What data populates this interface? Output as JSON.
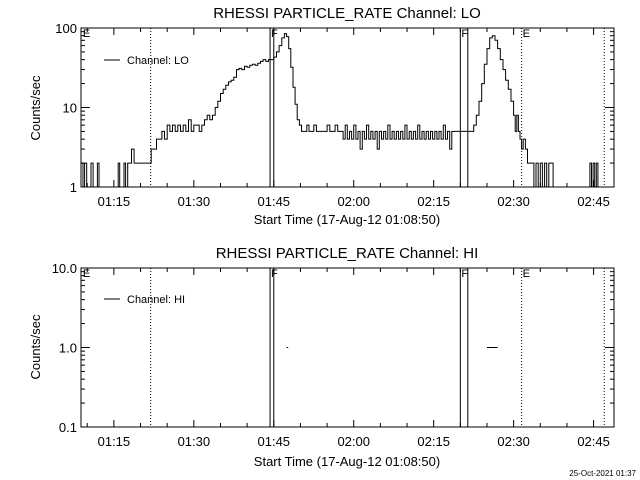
{
  "footer": {
    "timestamp": "25-Oct-2021 01:37"
  },
  "chart_data": [
    {
      "type": "line",
      "title": "RHESSI PARTICLE_RATE Channel: LO",
      "xlabel": "Start Time (17-Aug-12 01:08:50)",
      "ylabel": "Counts/sec",
      "yscale": "log",
      "xlim_minutes": [
        68.83,
        168.83
      ],
      "ylim": [
        1,
        100
      ],
      "xticks": [
        {
          "value": 75,
          "label": "01:15"
        },
        {
          "value": 90,
          "label": "01:30"
        },
        {
          "value": 105,
          "label": "01:45"
        },
        {
          "value": 120,
          "label": "02:00"
        },
        {
          "value": 135,
          "label": "02:15"
        },
        {
          "value": 150,
          "label": "02:30"
        },
        {
          "value": 165,
          "label": "02:45"
        }
      ],
      "yticks": [
        {
          "value": 1,
          "label": "1"
        },
        {
          "value": 10,
          "label": "10"
        },
        {
          "value": 100,
          "label": "100"
        }
      ],
      "legend": {
        "entry": "Channel: LO",
        "position": "top-left"
      },
      "flags": [
        {
          "label": "E",
          "x": 69.0,
          "style": "none"
        },
        {
          "label": "",
          "x": 81.9,
          "style": "dotted"
        },
        {
          "label": "F",
          "x": 104.3,
          "style": "solid"
        },
        {
          "label": "",
          "x": 105.0,
          "style": "solid"
        },
        {
          "label": "F",
          "x": 140.0,
          "style": "solid"
        },
        {
          "label": "",
          "x": 141.4,
          "style": "solid"
        },
        {
          "label": "E",
          "x": 151.5,
          "style": "dotted"
        },
        {
          "label": "",
          "x": 167.0,
          "style": "dotted"
        }
      ],
      "series": [
        {
          "name": "Channel: LO",
          "points": [
            [
              68.9,
              2
            ],
            [
              69.2,
              1
            ],
            [
              69.5,
              2
            ],
            [
              69.9,
              1
            ],
            [
              70.3,
              1
            ],
            [
              70.7,
              2
            ],
            [
              71.1,
              1
            ],
            [
              71.6,
              1
            ],
            [
              71.9,
              2
            ],
            [
              72.2,
              1
            ],
            [
              75.5,
              1
            ],
            [
              75.8,
              2
            ],
            [
              76.1,
              1
            ],
            [
              76.5,
              1
            ],
            [
              76.9,
              2
            ],
            [
              77.2,
              1
            ],
            [
              77.6,
              2
            ],
            [
              78.0,
              2
            ],
            [
              78.3,
              3
            ],
            [
              78.8,
              2
            ],
            [
              81.8,
              2
            ],
            [
              82.0,
              3
            ],
            [
              82.6,
              3
            ],
            [
              83.0,
              4
            ],
            [
              83.6,
              4
            ],
            [
              84.0,
              5
            ],
            [
              84.5,
              4
            ],
            [
              85.0,
              6
            ],
            [
              85.5,
              5
            ],
            [
              86.0,
              6
            ],
            [
              86.5,
              5
            ],
            [
              87.0,
              6
            ],
            [
              87.5,
              5
            ],
            [
              88.0,
              6
            ],
            [
              88.5,
              5
            ],
            [
              89.0,
              7
            ],
            [
              89.5,
              5
            ],
            [
              90.0,
              6
            ],
            [
              90.5,
              6
            ],
            [
              91.0,
              5
            ],
            [
              91.5,
              6
            ],
            [
              92.0,
              7
            ],
            [
              92.5,
              8
            ],
            [
              93.0,
              7
            ],
            [
              93.5,
              8
            ],
            [
              94.0,
              10
            ],
            [
              94.5,
              12
            ],
            [
              95.0,
              15
            ],
            [
              95.5,
              17
            ],
            [
              96.0,
              19
            ],
            [
              96.5,
              21
            ],
            [
              97.0,
              22
            ],
            [
              97.5,
              24
            ],
            [
              98.0,
              30
            ],
            [
              98.5,
              31
            ],
            [
              99.0,
              30
            ],
            [
              99.5,
              33
            ],
            [
              100.0,
              32
            ],
            [
              100.5,
              34
            ],
            [
              101.0,
              35
            ],
            [
              101.5,
              34
            ],
            [
              102.0,
              36
            ],
            [
              102.5,
              38
            ],
            [
              103.0,
              40
            ],
            [
              103.5,
              38
            ],
            [
              104.0,
              40
            ],
            [
              104.3,
              40
            ],
            [
              105.0,
              43
            ],
            [
              105.5,
              50
            ],
            [
              106.0,
              60
            ],
            [
              106.5,
              75
            ],
            [
              107.0,
              85
            ],
            [
              107.4,
              78
            ],
            [
              107.8,
              55
            ],
            [
              108.2,
              32
            ],
            [
              108.6,
              18
            ],
            [
              109.0,
              11
            ],
            [
              109.4,
              7
            ],
            [
              109.8,
              6
            ],
            [
              110.2,
              5
            ],
            [
              110.7,
              5
            ],
            [
              111.2,
              6
            ],
            [
              111.6,
              5
            ],
            [
              112.0,
              5
            ],
            [
              112.5,
              6
            ],
            [
              113.0,
              5
            ],
            [
              113.5,
              5
            ],
            [
              114.0,
              5
            ],
            [
              114.5,
              5
            ],
            [
              115.0,
              6
            ],
            [
              115.5,
              5
            ],
            [
              116.0,
              5
            ],
            [
              116.5,
              6
            ],
            [
              117.0,
              5
            ],
            [
              117.5,
              5
            ],
            [
              118.0,
              4
            ],
            [
              118.4,
              6
            ],
            [
              118.8,
              4
            ],
            [
              119.2,
              5
            ],
            [
              119.6,
              4
            ],
            [
              120.0,
              6
            ],
            [
              120.4,
              4
            ],
            [
              120.8,
              5
            ],
            [
              121.2,
              3
            ],
            [
              121.6,
              5
            ],
            [
              122.0,
              4
            ],
            [
              122.4,
              6
            ],
            [
              122.8,
              4
            ],
            [
              123.2,
              5
            ],
            [
              123.6,
              4
            ],
            [
              124.0,
              5
            ],
            [
              124.4,
              3
            ],
            [
              124.8,
              5
            ],
            [
              125.2,
              4
            ],
            [
              125.6,
              5
            ],
            [
              126.0,
              4
            ],
            [
              126.4,
              6
            ],
            [
              126.8,
              4
            ],
            [
              127.2,
              5
            ],
            [
              127.6,
              4
            ],
            [
              128.0,
              5
            ],
            [
              128.4,
              4
            ],
            [
              128.8,
              5
            ],
            [
              129.2,
              4
            ],
            [
              129.6,
              6
            ],
            [
              130.0,
              4
            ],
            [
              130.4,
              5
            ],
            [
              130.8,
              4
            ],
            [
              131.2,
              5
            ],
            [
              131.6,
              4
            ],
            [
              132.0,
              6
            ],
            [
              132.4,
              4
            ],
            [
              132.8,
              5
            ],
            [
              133.2,
              4
            ],
            [
              133.6,
              5
            ],
            [
              134.0,
              4
            ],
            [
              134.4,
              5
            ],
            [
              134.8,
              4
            ],
            [
              135.2,
              5
            ],
            [
              135.6,
              4
            ],
            [
              136.0,
              5
            ],
            [
              136.4,
              4
            ],
            [
              136.8,
              6
            ],
            [
              137.2,
              4
            ],
            [
              137.6,
              5
            ],
            [
              138.0,
              3
            ],
            [
              138.4,
              5
            ],
            [
              138.8,
              5
            ],
            [
              139.2,
              5
            ],
            [
              140.0,
              5
            ],
            [
              141.4,
              5
            ],
            [
              142.0,
              5
            ],
            [
              142.5,
              6
            ],
            [
              143.0,
              8
            ],
            [
              143.5,
              12
            ],
            [
              144.0,
              20
            ],
            [
              144.5,
              35
            ],
            [
              145.0,
              55
            ],
            [
              145.5,
              75
            ],
            [
              146.0,
              80
            ],
            [
              146.5,
              70
            ],
            [
              147.0,
              55
            ],
            [
              147.5,
              40
            ],
            [
              148.0,
              30
            ],
            [
              148.5,
              22
            ],
            [
              149.0,
              17
            ],
            [
              149.5,
              12
            ],
            [
              150.0,
              8
            ],
            [
              150.3,
              5
            ],
            [
              150.6,
              8
            ],
            [
              150.9,
              5
            ],
            [
              151.2,
              4
            ],
            [
              151.5,
              3
            ],
            [
              151.8,
              4
            ],
            [
              152.2,
              3
            ],
            [
              152.6,
              2
            ],
            [
              153.0,
              2
            ],
            [
              153.4,
              2
            ],
            [
              153.8,
              1
            ],
            [
              154.2,
              2
            ],
            [
              154.6,
              1
            ],
            [
              155.0,
              2
            ],
            [
              155.4,
              1
            ],
            [
              155.8,
              2
            ],
            [
              156.2,
              1
            ],
            [
              156.6,
              2
            ],
            [
              157.0,
              2
            ],
            [
              157.4,
              1
            ],
            [
              164.0,
              1
            ],
            [
              164.3,
              2
            ],
            [
              164.6,
              1
            ],
            [
              164.9,
              2
            ],
            [
              165.2,
              1
            ],
            [
              165.5,
              2
            ],
            [
              165.8,
              1
            ]
          ]
        }
      ]
    },
    {
      "type": "line",
      "title": "RHESSI PARTICLE_RATE Channel: HI",
      "xlabel": "Start Time (17-Aug-12 01:08:50)",
      "ylabel": "Counts/sec",
      "yscale": "log",
      "xlim_minutes": [
        68.83,
        168.83
      ],
      "ylim": [
        0.1,
        10
      ],
      "xticks": [
        {
          "value": 75,
          "label": "01:15"
        },
        {
          "value": 90,
          "label": "01:30"
        },
        {
          "value": 105,
          "label": "01:45"
        },
        {
          "value": 120,
          "label": "02:00"
        },
        {
          "value": 135,
          "label": "02:15"
        },
        {
          "value": 150,
          "label": "02:30"
        },
        {
          "value": 165,
          "label": "02:45"
        }
      ],
      "yticks": [
        {
          "value": 0.1,
          "label": "0.1"
        },
        {
          "value": 1,
          "label": "1.0"
        },
        {
          "value": 10,
          "label": "10.0"
        }
      ],
      "legend": {
        "entry": "Channel: HI",
        "position": "top-left"
      },
      "flags": [
        {
          "label": "E",
          "x": 69.0,
          "style": "none"
        },
        {
          "label": "",
          "x": 81.9,
          "style": "dotted"
        },
        {
          "label": "F",
          "x": 104.3,
          "style": "solid"
        },
        {
          "label": "",
          "x": 105.0,
          "style": "solid"
        },
        {
          "label": "F",
          "x": 140.0,
          "style": "solid"
        },
        {
          "label": "",
          "x": 141.4,
          "style": "solid"
        },
        {
          "label": "E",
          "x": 151.5,
          "style": "dotted"
        },
        {
          "label": "",
          "x": 167.0,
          "style": "dotted"
        }
      ],
      "series": [
        {
          "name": "Channel: HI",
          "segments": [
            [
              [
                107.4,
                1
              ],
              [
                107.7,
                1
              ]
            ],
            [
              [
                145.0,
                1
              ],
              [
                147.0,
                1
              ]
            ]
          ]
        }
      ]
    }
  ]
}
